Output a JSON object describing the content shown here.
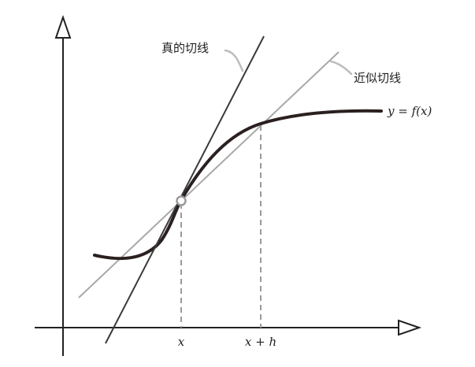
{
  "labels": {
    "true_tangent": "真的切线",
    "approx_tangent": "近似切线",
    "curve": "y = f(x)",
    "x_tick": "x",
    "xh_tick": "x + h"
  },
  "colors": {
    "axis": "#222222",
    "curve": "#2b2020",
    "true_tangent": "#3a3a3a",
    "approx_tangent": "#a8a8a8",
    "guide": "#9a9a9a",
    "leader": "#bdbdbd"
  }
}
